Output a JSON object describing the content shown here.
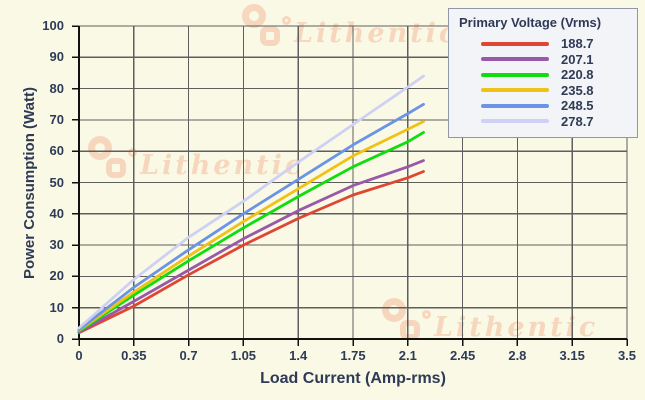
{
  "colors": {
    "background": "#FAF9E5",
    "grid": "#5E5E5E",
    "axis": "#111111",
    "text": "#2F3B56",
    "legend_background": "#F3F4F7",
    "legend_border": "#8F97A9",
    "watermark": "#F2A988"
  },
  "watermark": {
    "text": "Lithentic"
  },
  "chart_data": {
    "type": "line",
    "title": "",
    "xlabel": "Load Current (Amp-rms)",
    "ylabel": "Power Consumption (Watt)",
    "xlim": [
      0,
      3.5
    ],
    "ylim": [
      0,
      100
    ],
    "grid": true,
    "x_ticks": [
      0,
      0.35,
      0.7,
      1.05,
      1.4,
      1.75,
      2.1,
      2.45,
      2.8,
      3.15,
      3.5
    ],
    "x_tick_labels": [
      "0",
      "0.35",
      "0.7",
      "1.05",
      "1.4",
      "1.75",
      "2.1",
      "2.45",
      "2.8",
      "3.15",
      "3.5"
    ],
    "y_ticks": [
      0,
      10,
      20,
      30,
      40,
      50,
      60,
      70,
      80,
      90,
      100
    ],
    "legend_title": "Primary Voltage (Vrms)",
    "legend_position": "top-right",
    "x": [
      0,
      0.35,
      0.7,
      1.05,
      1.4,
      1.75,
      2.1,
      2.2
    ],
    "series": [
      {
        "name": "188.7",
        "color": "#DE4733",
        "values": [
          2.0,
          10.5,
          20.5,
          30.0,
          38.5,
          46.0,
          51.5,
          53.5
        ]
      },
      {
        "name": "207.1",
        "color": "#9859A8",
        "values": [
          2.2,
          12.0,
          22.0,
          32.0,
          41.0,
          49.0,
          55.0,
          57.0
        ]
      },
      {
        "name": "220.8",
        "color": "#10DC10",
        "values": [
          2.5,
          14.0,
          25.0,
          35.5,
          45.5,
          55.0,
          63.0,
          66.0
        ]
      },
      {
        "name": "235.8",
        "color": "#EFC216",
        "values": [
          2.8,
          15.0,
          26.5,
          37.5,
          48.0,
          58.5,
          67.0,
          69.5
        ]
      },
      {
        "name": "248.5",
        "color": "#6B93E6",
        "values": [
          3.0,
          16.5,
          28.5,
          40.0,
          51.0,
          62.0,
          72.0,
          75.0
        ]
      },
      {
        "name": "278.7",
        "color": "#CED1F4",
        "values": [
          3.5,
          19.0,
          32.5,
          44.0,
          56.5,
          68.5,
          80.5,
          84.0
        ]
      }
    ]
  }
}
